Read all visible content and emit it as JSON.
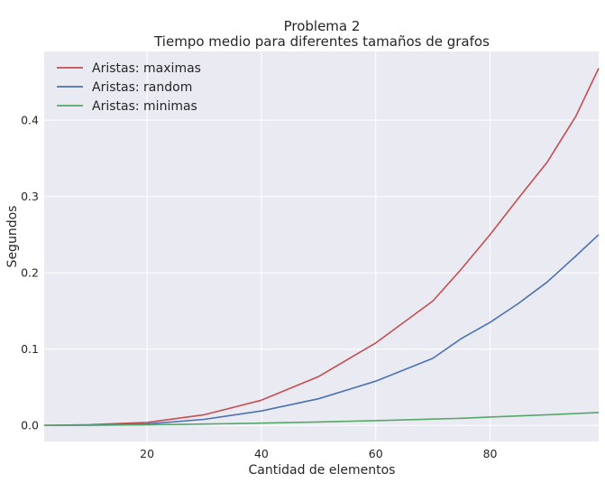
{
  "chart_data": {
    "type": "line",
    "title": "Problema 2",
    "subtitle": "Tiempo medio para diferentes tamaños de grafos",
    "xlabel": "Cantidad de elementos",
    "ylabel": "Segundos",
    "xlim": [
      2,
      99
    ],
    "ylim": [
      -0.021,
      0.49
    ],
    "xticks": [
      20,
      40,
      60,
      80
    ],
    "yticks": [
      0.0,
      0.1,
      0.2,
      0.3,
      0.4
    ],
    "xtick_labels": [
      "20",
      "40",
      "60",
      "80"
    ],
    "ytick_labels": [
      "0.0",
      "0.1",
      "0.2",
      "0.3",
      "0.4"
    ],
    "grid": true,
    "legend_position": "top-left",
    "background": "#eaeaf2",
    "x": [
      2,
      10,
      20,
      30,
      40,
      50,
      60,
      70,
      75,
      80,
      85,
      90,
      95,
      99
    ],
    "series": [
      {
        "name": "Aristas: maximas",
        "color": "#c44e52",
        "values": [
          0.0,
          0.001,
          0.004,
          0.014,
          0.033,
          0.064,
          0.108,
          0.163,
          0.205,
          0.25,
          0.298,
          0.345,
          0.405,
          0.468
        ]
      },
      {
        "name": "Aristas: random",
        "color": "#4c72b0",
        "values": [
          0.0,
          0.0005,
          0.002,
          0.008,
          0.019,
          0.035,
          0.058,
          0.088,
          0.114,
          0.135,
          0.16,
          0.188,
          0.222,
          0.25
        ]
      },
      {
        "name": "Aristas: minimas",
        "color": "#55a868",
        "values": [
          0.0,
          0.0002,
          0.0008,
          0.0018,
          0.003,
          0.0045,
          0.0063,
          0.0083,
          0.0094,
          0.011,
          0.0125,
          0.014,
          0.0155,
          0.017
        ]
      }
    ]
  }
}
